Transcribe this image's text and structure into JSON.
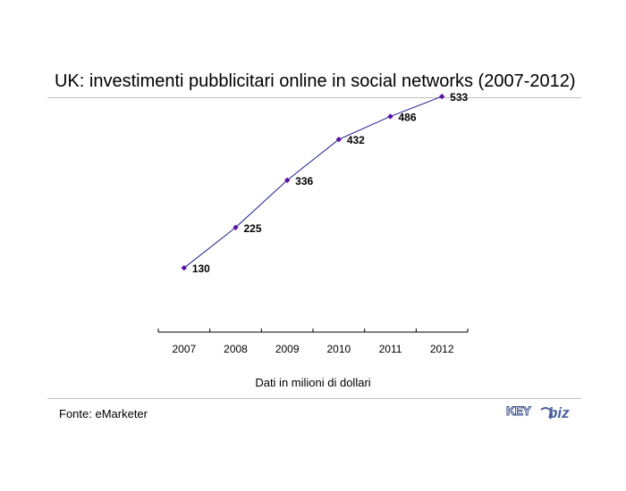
{
  "title": "UK: investimenti pubblicitari online in social networks (2007-2012)",
  "note": "Dati in milioni di dollari",
  "source": "Fonte: eMarketer",
  "logo_text": "KEY4biz",
  "colors": {
    "line": "#1f1f8f",
    "marker": "#5b0fa6",
    "rule": "#bdbdbd"
  },
  "chart_data": {
    "type": "line",
    "categories": [
      "2007",
      "2008",
      "2009",
      "2010",
      "2011",
      "2012"
    ],
    "values": [
      130,
      225,
      336,
      432,
      486,
      533
    ],
    "data_labels": [
      "130",
      "225",
      "336",
      "432",
      "486",
      "533"
    ],
    "xlabel": "",
    "ylabel": "",
    "ylim": [
      0,
      550
    ],
    "grid": false,
    "legend": false
  }
}
